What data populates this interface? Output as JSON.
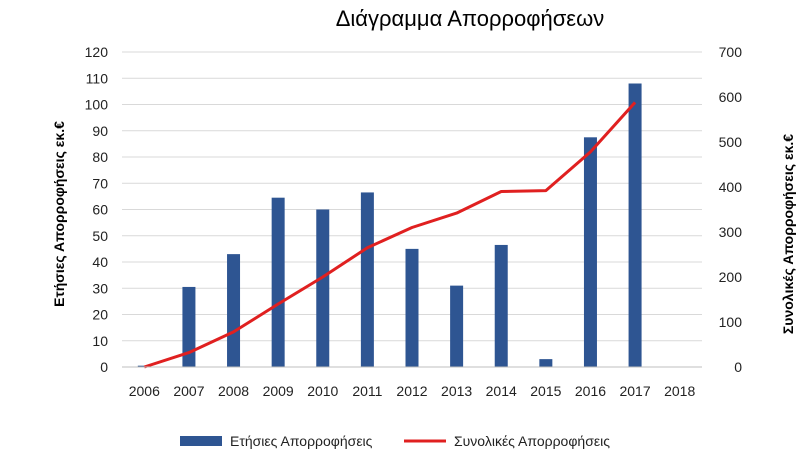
{
  "chart_data": {
    "type": "bar+line",
    "title": "Διάγραμμα Απορροφήσεων",
    "categories": [
      "2006",
      "2007",
      "2008",
      "2009",
      "2010",
      "2011",
      "2012",
      "2013",
      "2014",
      "2015",
      "2016",
      "2017",
      "2018"
    ],
    "series": [
      {
        "name": "Ετήσιες Απορροφήσεις",
        "type": "bar",
        "axis": "left",
        "color": "#2e5592",
        "values": [
          0.5,
          30.5,
          43,
          64.5,
          60,
          66.5,
          45,
          31,
          46.5,
          3,
          87.5,
          108,
          null
        ]
      },
      {
        "name": "Συνολικές Απορροφήσεις",
        "type": "line",
        "axis": "right",
        "color": "#e02020",
        "values": [
          0,
          32,
          78,
          140,
          200,
          265,
          310,
          342,
          390,
          392,
          478,
          588,
          null
        ]
      }
    ],
    "y_left": {
      "label": "Ετήσιες Απορροφήσεις εκ.€",
      "min": 0,
      "max": 120,
      "ticks": [
        "0",
        "10",
        "20",
        "30",
        "40",
        "50",
        "60",
        "70",
        "80",
        "90",
        "100",
        "110",
        "120"
      ]
    },
    "y_right": {
      "label": "Συνολικές Απορροφήσεις εκ.€",
      "min": 0,
      "max": 700,
      "ticks": [
        "0",
        "100",
        "200",
        "300",
        "400",
        "500",
        "600",
        "700"
      ]
    },
    "grid": true,
    "legend": "bottom"
  }
}
